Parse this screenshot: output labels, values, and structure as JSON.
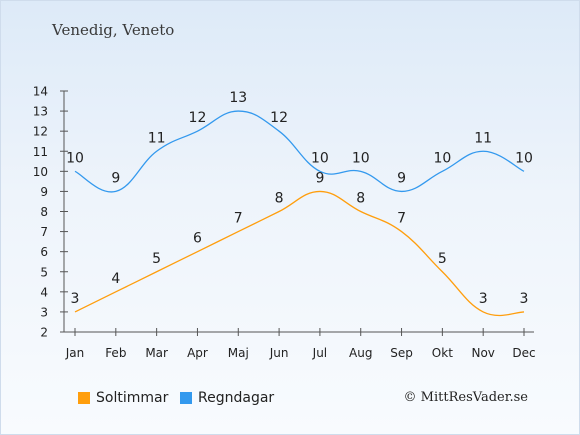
{
  "chart_data": {
    "type": "line",
    "title": "Venedig, Veneto",
    "categories": [
      "Jan",
      "Feb",
      "Mar",
      "Apr",
      "Maj",
      "Jun",
      "Jul",
      "Aug",
      "Sep",
      "Okt",
      "Nov",
      "Dec"
    ],
    "ylim": [
      2,
      14
    ],
    "yticks": [
      2,
      3,
      4,
      5,
      6,
      7,
      8,
      9,
      10,
      11,
      12,
      13,
      14
    ],
    "series": [
      {
        "name": "Soltimmar",
        "color": "#ff9e0d",
        "values": [
          3,
          4,
          5,
          6,
          7,
          8,
          9,
          8,
          7,
          5,
          3,
          3
        ]
      },
      {
        "name": "Regndagar",
        "color": "#3399ee",
        "values": [
          10,
          9,
          11,
          12,
          13,
          12,
          10,
          10,
          9,
          10,
          11,
          10
        ]
      }
    ],
    "grid": false,
    "legend_position": "bottom"
  },
  "credit": "© MittResVader.se"
}
